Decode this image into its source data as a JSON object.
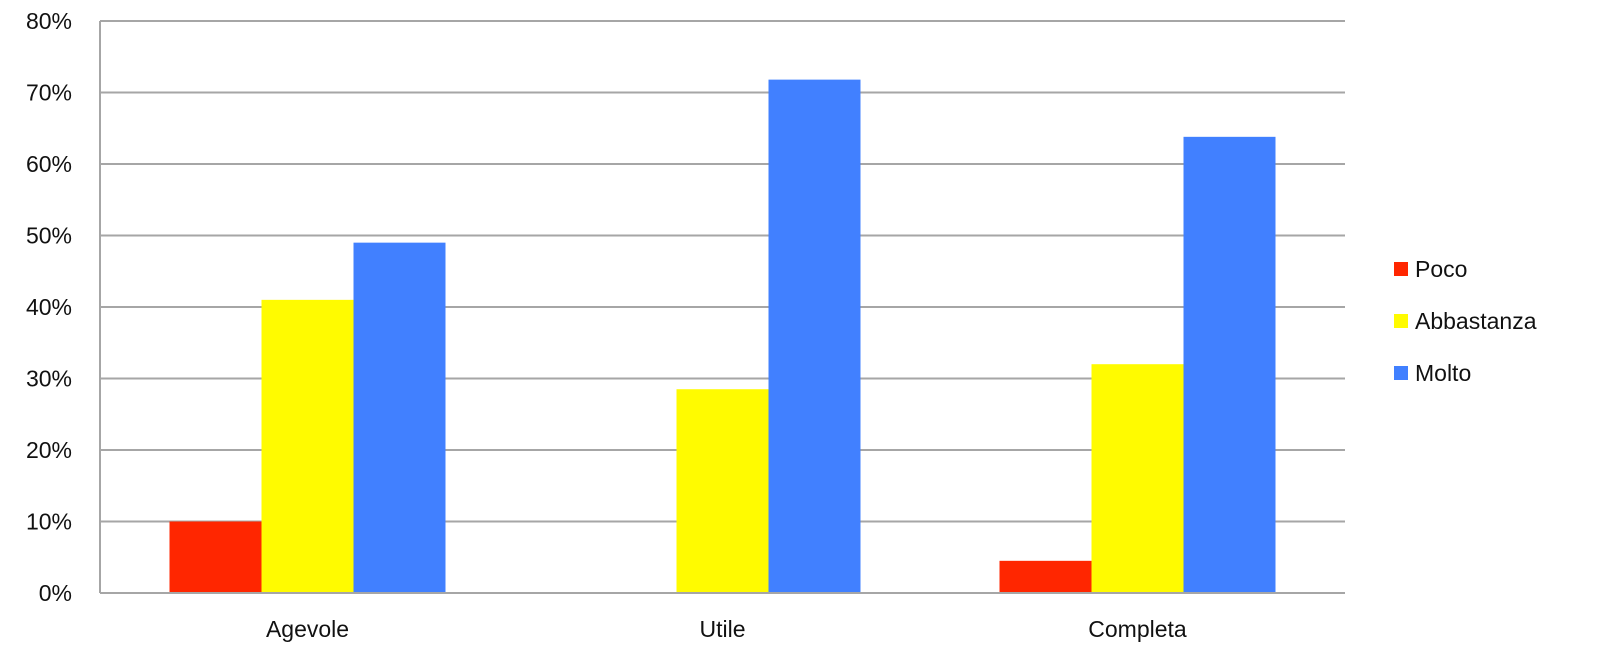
{
  "chart_data": {
    "type": "bar",
    "categories": [
      "Agevole",
      "Utile",
      "Completa"
    ],
    "series": [
      {
        "name": "Poco",
        "values": [
          10,
          0,
          4.5
        ],
        "color": "#ff2600"
      },
      {
        "name": "Abbastanza",
        "values": [
          41,
          28.5,
          32
        ],
        "color": "#fffb00"
      },
      {
        "name": "Molto",
        "values": [
          49,
          71.8,
          63.8
        ],
        "color": "#4180ff"
      }
    ],
    "ylim": [
      0,
      80
    ],
    "yticks": [
      0,
      10,
      20,
      30,
      40,
      50,
      60,
      70,
      80
    ],
    "ytick_labels": [
      "0%",
      "10%",
      "20%",
      "30%",
      "40%",
      "50%",
      "60%",
      "70%",
      "80%"
    ],
    "grid": true,
    "legend_position": "right"
  }
}
